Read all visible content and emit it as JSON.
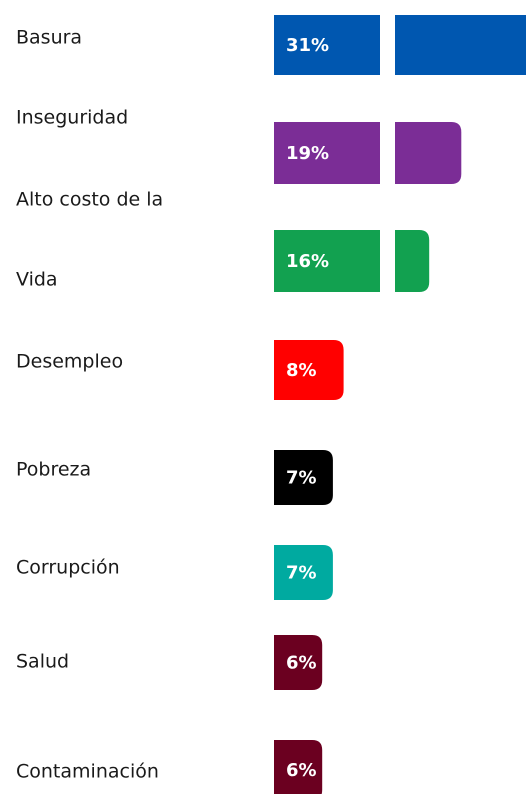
{
  "chart_data": {
    "type": "bar",
    "orientation": "horizontal",
    "categories": [
      "Basura",
      "Inseguridad",
      [
        "Alto costo de la",
        "Vida"
      ],
      "Desempleo",
      "Pobreza",
      "Corrupción",
      "Salud",
      "Contaminación"
    ],
    "values": [
      31,
      19,
      16,
      8,
      7,
      7,
      6,
      6
    ],
    "value_labels": [
      "31%",
      "19%",
      "16%",
      "8%",
      "7%",
      "7%",
      "6%",
      "6%"
    ],
    "colors": [
      "#0057b0",
      "#7b2d96",
      "#12a150",
      "#ff0000",
      "#000000",
      "#00aaa0",
      "#6b0020",
      "#6b0020"
    ]
  }
}
